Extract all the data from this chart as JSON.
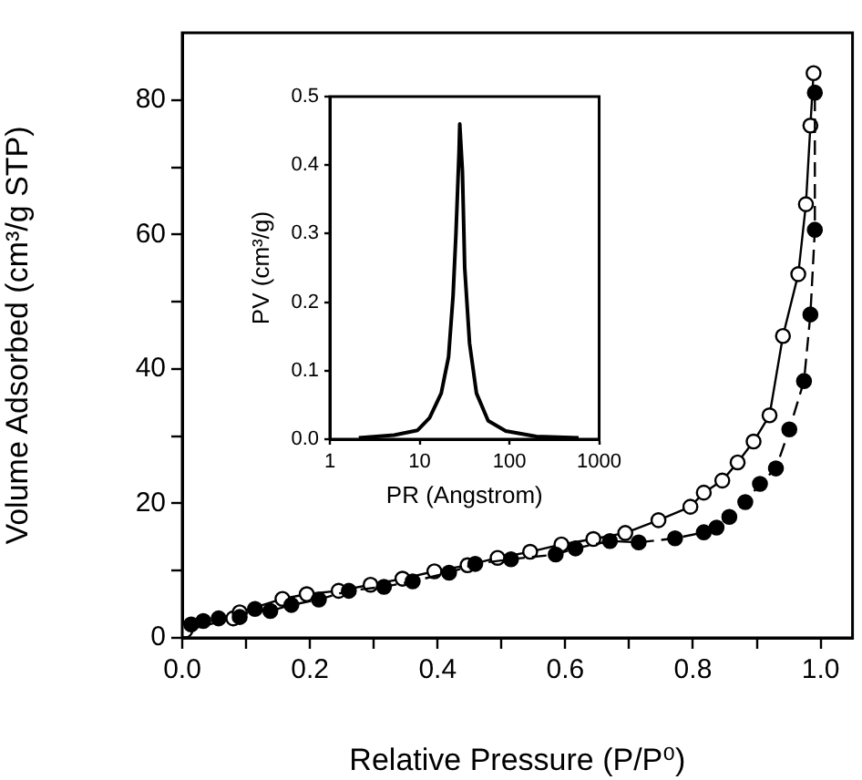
{
  "chart_data": [
    {
      "type": "line",
      "xlabel": "Relative Pressure (P/P⁰)",
      "ylabel": "Volume Adsorbed (cm³/g STP)",
      "marker": "circle",
      "line_style": "solid",
      "xlim": [
        0,
        1.05
      ],
      "ylim": [
        0,
        90
      ],
      "xticks": [
        {
          "value": 0,
          "label": "0.0"
        },
        {
          "value": 0.1,
          "label": null
        },
        {
          "value": 0.2,
          "label": "0.2"
        },
        {
          "value": 0.3,
          "label": null
        },
        {
          "value": 0.4,
          "label": "0.4"
        },
        {
          "value": 0.5,
          "label": null
        },
        {
          "value": 0.6,
          "label": "0.6"
        },
        {
          "value": 0.7,
          "label": null
        },
        {
          "value": 0.8,
          "label": "0.8"
        },
        {
          "value": 0.9,
          "label": null
        },
        {
          "value": 1,
          "label": "1.0"
        }
      ],
      "yticks": [
        0,
        {
          "value": 10,
          "label": null
        },
        20,
        {
          "value": 30,
          "label": null
        },
        40,
        {
          "value": 50,
          "label": null
        },
        60,
        {
          "value": 70,
          "label": null
        },
        80
      ],
      "series": [
        {
          "color": "#000000",
          "x": [
            0,
            0.005,
            0.08,
            0.09,
            0.157,
            0.195,
            0.245,
            0.295,
            0.345,
            0.395,
            0.447,
            0.494,
            0.545,
            0.594,
            0.644,
            0.694,
            0.746,
            0.796,
            0.817,
            0.846,
            0.87,
            0.895,
            0.92,
            0.941,
            0.965,
            0.977,
            0.984,
            0.989
          ],
          "values": [
            0,
            1.1,
            2.9,
            3.8,
            5.8,
            6.5,
            7.0,
            7.9,
            8.8,
            9.9,
            10.8,
            11.9,
            12.8,
            13.9,
            14.7,
            15.6,
            17.5,
            19.5,
            21.6,
            23.4,
            26.1,
            29.2,
            33.1,
            44.9,
            54.1,
            64.5,
            76.2,
            84.0
          ]
        },
        {
          "color": "#000000",
          "line_style": "dashed",
          "x": [
            0.014,
            0.033,
            0.057,
            0.09,
            0.114,
            0.138,
            0.171,
            0.214,
            0.261,
            0.316,
            0.361,
            0.418,
            0.459,
            0.515,
            0.585,
            0.616,
            0.67,
            0.715,
            0.772,
            0.817,
            0.837,
            0.857,
            0.882,
            0.905,
            0.93,
            0.951,
            0.974,
            0.984,
            0.991,
            0.991
          ],
          "values": [
            2.0,
            2.5,
            2.9,
            3.1,
            4.3,
            4.0,
            4.9,
            5.7,
            7.0,
            7.6,
            8.4,
            9.7,
            11.0,
            11.7,
            12.4,
            13.3,
            14.4,
            14.2,
            14.8,
            15.7,
            16.4,
            18.0,
            20.2,
            22.9,
            25.2,
            31.0,
            38.2,
            48.1,
            60.7,
            81.1
          ]
        }
      ]
    },
    {
      "type": "line",
      "xlabel": "PR (Angstrom)",
      "ylabel": "PV (cm³/g)",
      "marker": "none",
      "line_style": "solid",
      "log": "x",
      "xlim": [
        1,
        1000
      ],
      "ylim": [
        0,
        0.5
      ],
      "xticks": [
        1,
        10,
        100,
        1000
      ],
      "yticks": [
        {
          "value": 0,
          "label": "0.0"
        },
        0.1,
        0.2,
        0.3,
        0.4,
        0.5
      ],
      "series": [
        {
          "color": "#000000",
          "x": [
            2.1,
            5.2,
            9.5,
            12.9,
            17.4,
            21,
            23.6,
            25.4,
            27.5,
            28,
            30,
            31.8,
            36,
            43,
            58,
            91,
            200,
            590
          ],
          "values": [
            0.002,
            0.006,
            0.013,
            0.031,
            0.067,
            0.12,
            0.21,
            0.3,
            0.42,
            0.46,
            0.39,
            0.25,
            0.14,
            0.067,
            0.027,
            0.012,
            0.004,
            0.002
          ]
        }
      ]
    }
  ]
}
